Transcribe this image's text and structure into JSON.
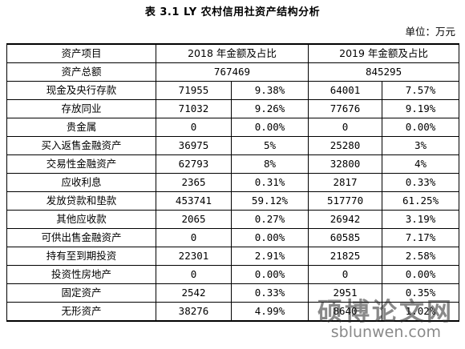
{
  "title": "表 3.1  LY 农村信用社资产结构分析",
  "unit": "单位：万元",
  "headers": [
    "资产项目",
    "2018 年金额及占比",
    "2019 年金额及占比"
  ],
  "total": {
    "label": "资产总额",
    "y2018": "767469",
    "y2019": "845295"
  },
  "rows": [
    {
      "item": "现金及央行存款",
      "a2018": "71955",
      "p2018": "9.38%",
      "a2019": "64001",
      "p2019": "7.57%"
    },
    {
      "item": "存放同业",
      "a2018": "71032",
      "p2018": "9.26%",
      "a2019": "77676",
      "p2019": "9.19%"
    },
    {
      "item": "贵金属",
      "a2018": "0",
      "p2018": "0.00%",
      "a2019": "0",
      "p2019": "0.00%"
    },
    {
      "item": "买入返售金融资产",
      "a2018": "36975",
      "p2018": "5%",
      "a2019": "25280",
      "p2019": "3%"
    },
    {
      "item": "交易性金融资产",
      "a2018": "62793",
      "p2018": "8%",
      "a2019": "32800",
      "p2019": "4%"
    },
    {
      "item": "应收利息",
      "a2018": "2365",
      "p2018": "0.31%",
      "a2019": "2817",
      "p2019": "0.33%"
    },
    {
      "item": "发放贷款和垫款",
      "a2018": "453741",
      "p2018": "59.12%",
      "a2019": "517770",
      "p2019": "61.25%"
    },
    {
      "item": "其他应收款",
      "a2018": "2065",
      "p2018": "0.27%",
      "a2019": "26942",
      "p2019": "3.19%"
    },
    {
      "item": "可供出售金融资产",
      "a2018": "0",
      "p2018": "0.00%",
      "a2019": "60585",
      "p2019": "7.17%"
    },
    {
      "item": "持有至到期投资",
      "a2018": "22301",
      "p2018": "2.91%",
      "a2019": "21825",
      "p2019": "2.58%"
    },
    {
      "item": "投资性房地产",
      "a2018": "0",
      "p2018": "0.00%",
      "a2019": "0",
      "p2019": "0.00%"
    },
    {
      "item": "固定资产",
      "a2018": "2542",
      "p2018": "0.33%",
      "a2019": "2951",
      "p2019": "0.35%"
    },
    {
      "item": "无形资产",
      "a2018": "38276",
      "p2018": "4.99%",
      "a2019": "8640",
      "p2019": "1.02%"
    }
  ],
  "watermark": {
    "text": "硕博论文网",
    "url": "sblunwen.com"
  }
}
